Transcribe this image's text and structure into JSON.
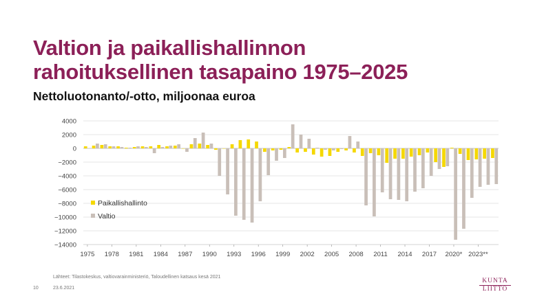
{
  "title_lines": [
    "Valtion ja paikallishallinnon",
    "rahoituksellinen tasapaino 1975–2025"
  ],
  "subtitle": "Nettoluotonanto/-otto, miljoonaa euroa",
  "source": "Lähteet: Tilastokeskus, valtiovarainministeriö, Taloudellinen katsaus kesä 2021",
  "slide_number": "10",
  "date": "23.6.2021",
  "logo": {
    "line1": "KUNTA",
    "line2": "LIITTO"
  },
  "colors": {
    "paikallishallinto": "#f5d800",
    "valtio": "#c9bfb8",
    "title": "#8c2058",
    "grid": "#dddddd"
  },
  "chart_data": {
    "type": "bar",
    "title": "",
    "xlabel": "",
    "ylabel": "",
    "ylim": [
      -14000,
      4000
    ],
    "yticks": [
      4000,
      2000,
      0,
      -2000,
      -4000,
      -6000,
      -8000,
      -10000,
      -12000,
      -14000
    ],
    "ytick_labels": [
      "4000",
      "2000",
      "0",
      "−2000",
      "−4000",
      "−6000",
      "−8000",
      "−10000",
      "−12000",
      "−14000"
    ],
    "xtick_labels": [
      "1975",
      "1978",
      "1981",
      "1984",
      "1987",
      "1990",
      "1993",
      "1996",
      "1999",
      "2002",
      "2005",
      "2008",
      "2011",
      "2014",
      "2017",
      "2020*",
      "2023**"
    ],
    "xtick_years": [
      1975,
      1978,
      1981,
      1984,
      1987,
      1990,
      1993,
      1996,
      1999,
      2002,
      2005,
      2008,
      2011,
      2014,
      2017,
      2020,
      2023
    ],
    "grid": true,
    "legend_position": "lower-left",
    "categories": [
      1975,
      1976,
      1977,
      1978,
      1979,
      1980,
      1981,
      1982,
      1983,
      1984,
      1985,
      1986,
      1987,
      1988,
      1989,
      1990,
      1991,
      1992,
      1993,
      1994,
      1995,
      1996,
      1997,
      1998,
      1999,
      2000,
      2001,
      2002,
      2003,
      2004,
      2005,
      2006,
      2007,
      2008,
      2009,
      2010,
      2011,
      2012,
      2013,
      2014,
      2015,
      2016,
      2017,
      2018,
      2019,
      2020,
      2021,
      2022,
      2023,
      2024,
      2025
    ],
    "series": [
      {
        "name": "Paikallishallinto",
        "values": [
          300,
          400,
          500,
          300,
          300,
          100,
          200,
          300,
          300,
          500,
          300,
          400,
          0,
          600,
          700,
          500,
          -200,
          0,
          600,
          1200,
          1300,
          1000,
          -500,
          -300,
          -200,
          200,
          -600,
          -500,
          -900,
          -1200,
          -1100,
          -500,
          -300,
          -600,
          -1100,
          -700,
          -1000,
          -2100,
          -1500,
          -1500,
          -1200,
          -1000,
          -600,
          -2000,
          -2700,
          100,
          -800,
          -1700,
          -1600,
          -1500,
          -1400
        ]
      },
      {
        "name": "Valtio",
        "values": [
          0,
          700,
          600,
          300,
          200,
          100,
          300,
          200,
          -700,
          200,
          400,
          600,
          -500,
          1500,
          2300,
          700,
          -4000,
          -6700,
          -9800,
          -10400,
          -10800,
          -7700,
          -3900,
          -1800,
          -1400,
          3500,
          2000,
          1400,
          100,
          -200,
          -300,
          -100,
          1800,
          1000,
          -8300,
          -9900,
          -6400,
          -7400,
          -7500,
          -7700,
          -6300,
          -5800,
          -4000,
          -3000,
          -2600,
          -13300,
          -11700,
          -7200,
          -5600,
          -5300,
          -5200
        ]
      }
    ]
  }
}
